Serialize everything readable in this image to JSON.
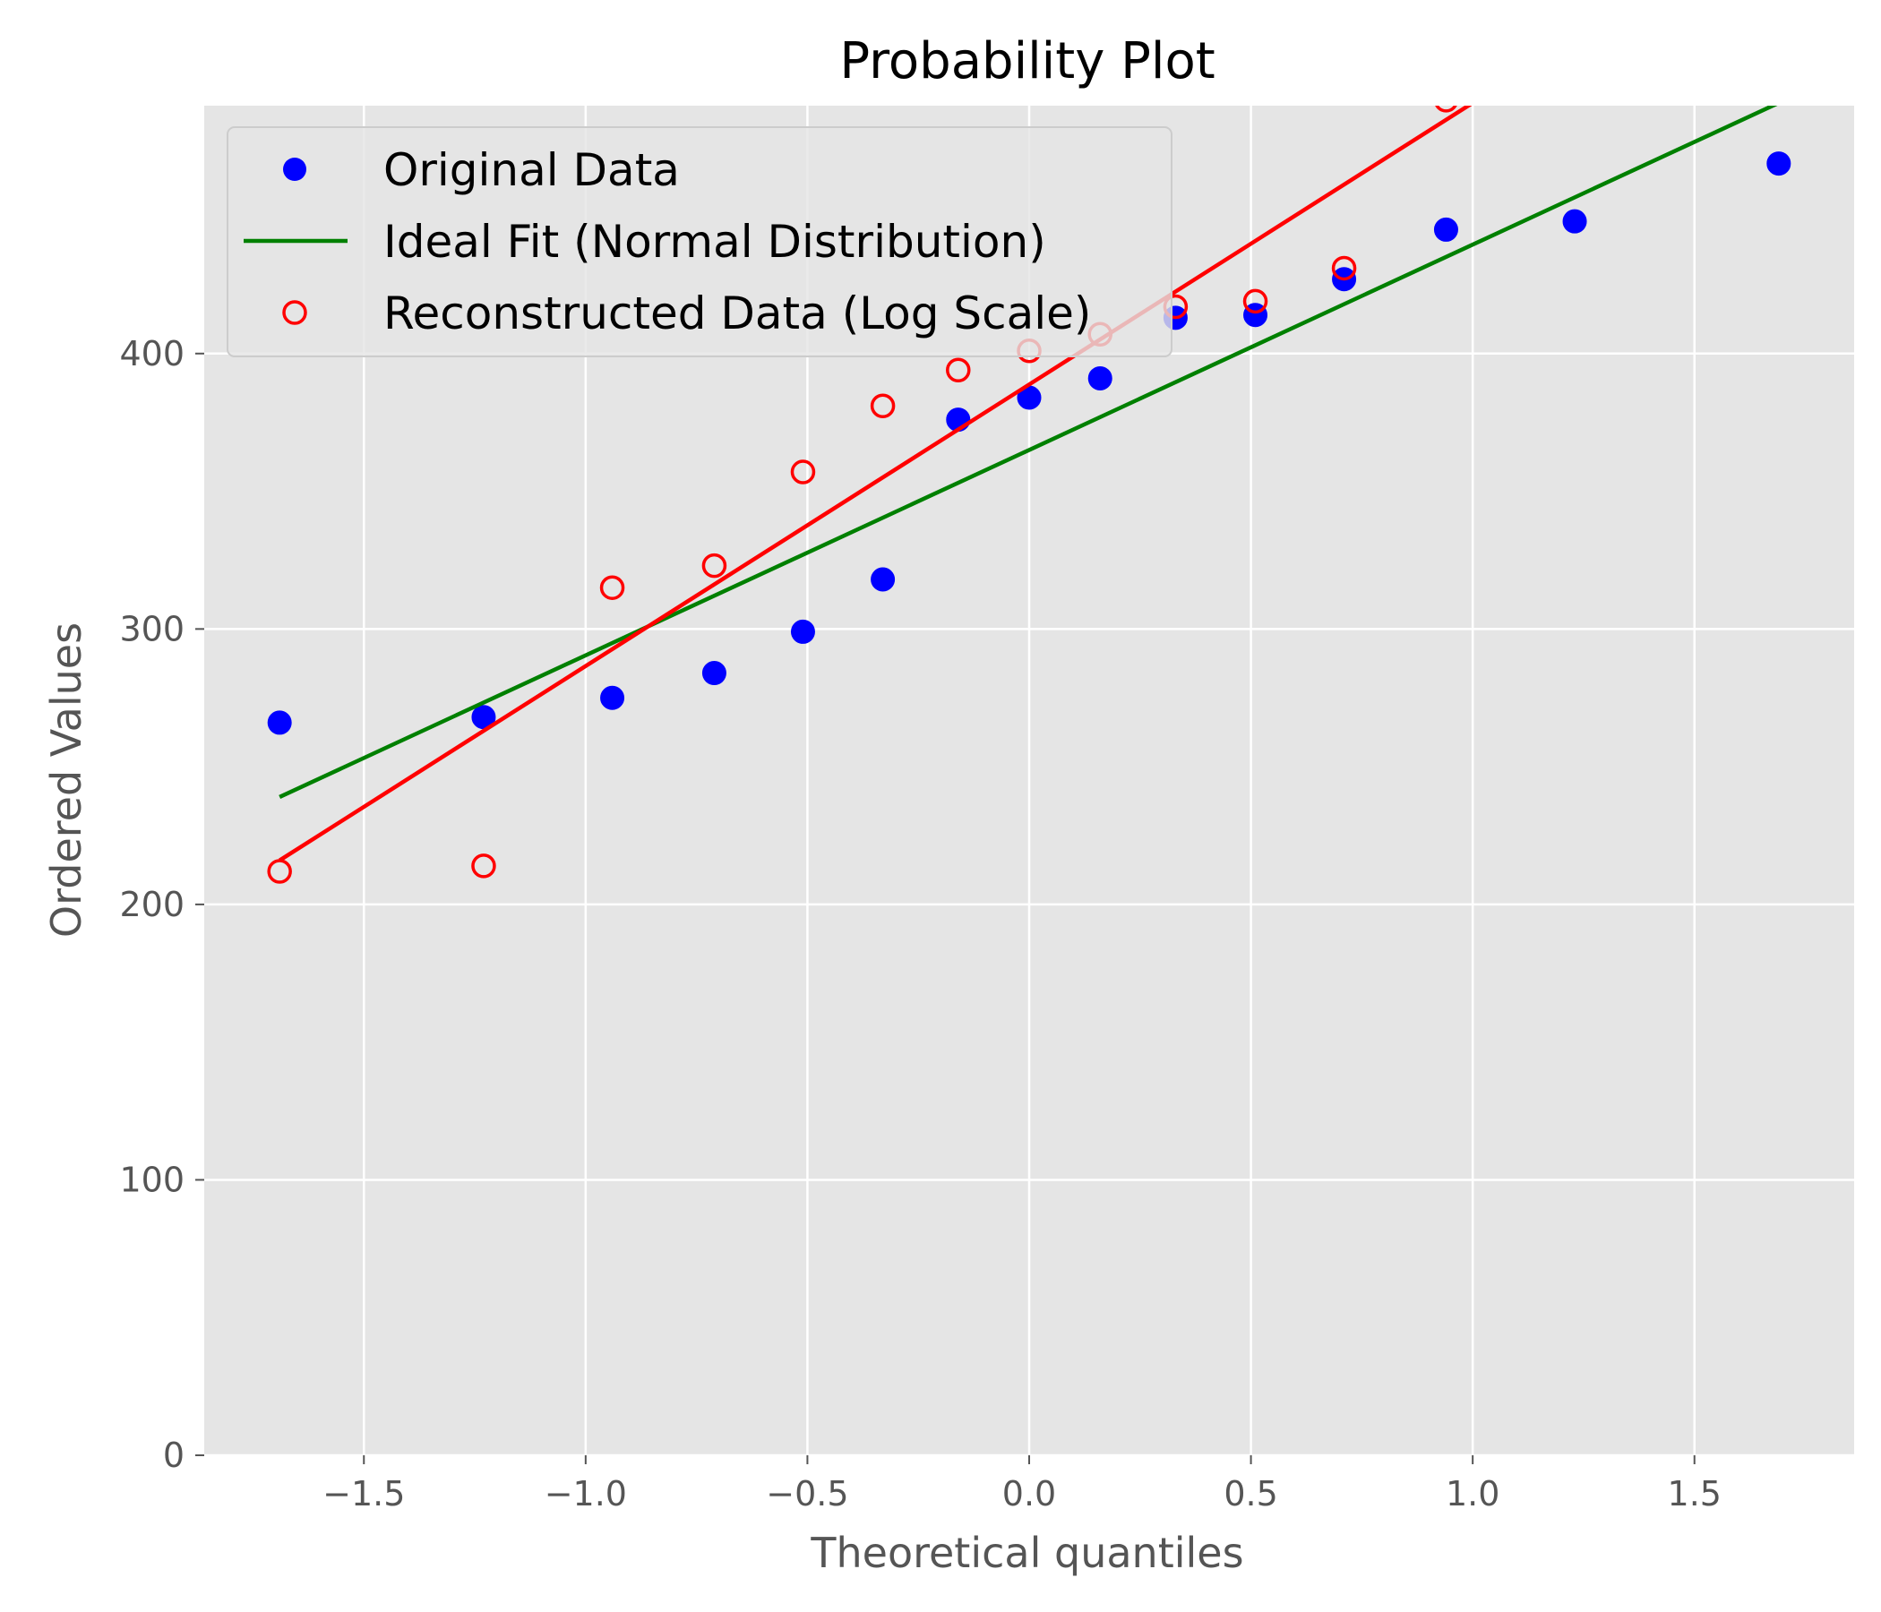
{
  "chart_data": {
    "type": "scatter",
    "title": "Probability Plot",
    "xlabel": "Theoretical quantiles",
    "ylabel": "Ordered Values",
    "xlim": [
      -1.86,
      1.86
    ],
    "ylim": [
      0,
      490
    ],
    "xticks": [
      -1.5,
      -1.0,
      -0.5,
      0.0,
      0.5,
      1.0,
      1.5
    ],
    "xtick_labels": [
      "−1.5",
      "−1.0",
      "−0.5",
      "0.0",
      "0.5",
      "1.0",
      "1.5"
    ],
    "yticks": [
      0,
      100,
      200,
      300,
      400
    ],
    "ytick_labels": [
      "0",
      "100",
      "200",
      "300",
      "400"
    ],
    "grid": true,
    "legend_position": "top-left",
    "background": "#e5e5e5",
    "series": [
      {
        "name": "Original Data",
        "kind": "scatter-filled",
        "color": "#0000ff",
        "x": [
          -1.69,
          -1.23,
          -0.94,
          -0.71,
          -0.51,
          -0.33,
          -0.16,
          0.0,
          0.16,
          0.33,
          0.51,
          0.71,
          0.94,
          1.23,
          1.69
        ],
        "y": [
          266,
          268,
          275,
          284,
          299,
          318,
          376,
          384,
          391,
          413,
          414,
          427,
          445,
          448,
          469
        ]
      },
      {
        "name": "Ideal Fit (Normal Distribution)",
        "kind": "line",
        "color": "#008000",
        "x": [
          -1.69,
          1.69
        ],
        "y": [
          239,
          491
        ]
      },
      {
        "name": "Reconstructed Data (Log Scale)",
        "kind": "scatter-open",
        "color": "#ff0000",
        "x": [
          -1.69,
          -1.23,
          -0.94,
          -0.71,
          -0.51,
          -0.33,
          -0.16,
          0.0,
          0.16,
          0.33,
          0.51,
          0.71,
          0.94
        ],
        "y": [
          212,
          214,
          315,
          323,
          357,
          381,
          394,
          401,
          407,
          417,
          419,
          431,
          492
        ]
      },
      {
        "name": "",
        "kind": "line",
        "color": "#ff0000",
        "x": [
          -1.69,
          1.0
        ],
        "y": [
          216,
          491
        ]
      }
    ]
  }
}
